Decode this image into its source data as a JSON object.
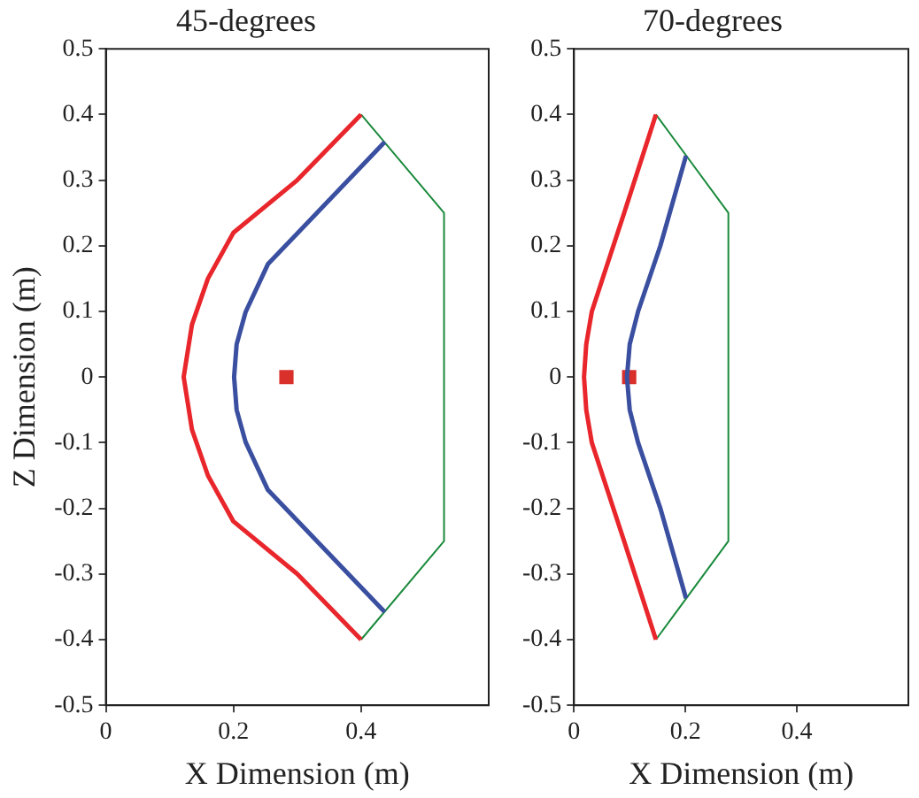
{
  "chart_data": [
    {
      "type": "line",
      "title": "45-degrees",
      "xlabel": "X Dimension (m)",
      "ylabel": "Z Dimension (m)",
      "xlim": [
        0,
        0.6
      ],
      "xticks": [
        0,
        0.2,
        0.4
      ],
      "ylim": [
        -0.5,
        0.5
      ],
      "yticks": [
        -0.5,
        -0.4,
        -0.3,
        -0.2,
        -0.1,
        0,
        0.1,
        0.2,
        0.3,
        0.4,
        0.5
      ],
      "grid": false,
      "legend": false,
      "series": [
        {
          "color": "#e8262b",
          "x": [
            0.4,
            0.3,
            0.2,
            0.16,
            0.135,
            0.122,
            0.135,
            0.16,
            0.2,
            0.3,
            0.4
          ],
          "values": [
            0.4,
            0.3,
            0.22,
            0.15,
            0.08,
            0,
            -0.08,
            -0.15,
            -0.22,
            -0.3,
            -0.4
          ]
        },
        {
          "color": "#3a4fa0",
          "x": [
            0.437,
            0.254,
            0.219,
            0.205,
            0.201,
            0.205,
            0.219,
            0.254,
            0.437
          ],
          "values": [
            0.358,
            0.172,
            0.099,
            0.05,
            0,
            -0.05,
            -0.099,
            -0.172,
            -0.358
          ]
        },
        {
          "color": "#1b8a3c",
          "x": [
            0.4,
            0.53,
            0.53,
            0.4
          ],
          "values": [
            0.4,
            0.25,
            -0.25,
            -0.4
          ]
        },
        {
          "type": "scatter",
          "marker": "square",
          "color": "#d9302c",
          "x": [
            0.283
          ],
          "values": [
            0
          ]
        }
      ]
    },
    {
      "type": "line",
      "title": "70-degrees",
      "xlabel": "X Dimension (m)",
      "xlim": [
        0,
        0.6
      ],
      "xticks": [
        0,
        0.2,
        0.4
      ],
      "ylim": [
        -0.5,
        0.5
      ],
      "yticks": [
        -0.5,
        -0.4,
        -0.3,
        -0.2,
        -0.1,
        0,
        0.1,
        0.2,
        0.3,
        0.4,
        0.5
      ],
      "grid": false,
      "legend": false,
      "series": [
        {
          "color": "#e8262b",
          "x": [
            0.147,
            0.09,
            0.032,
            0.022,
            0.018,
            0.022,
            0.032,
            0.09,
            0.147
          ],
          "values": [
            0.4,
            0.25,
            0.1,
            0.05,
            0,
            -0.05,
            -0.1,
            -0.25,
            -0.4
          ]
        },
        {
          "color": "#3a4fa0",
          "x": [
            0.201,
            0.155,
            0.115,
            0.1,
            0.095,
            0.1,
            0.115,
            0.155,
            0.201
          ],
          "values": [
            0.337,
            0.2,
            0.1,
            0.05,
            0,
            -0.05,
            -0.1,
            -0.2,
            -0.337
          ]
        },
        {
          "color": "#1b8a3c",
          "x": [
            0.147,
            0.277,
            0.277,
            0.147
          ],
          "values": [
            0.4,
            0.25,
            -0.25,
            -0.4
          ]
        },
        {
          "type": "scatter",
          "marker": "square",
          "color": "#d9302c",
          "x": [
            0.099
          ],
          "values": [
            0
          ]
        }
      ]
    }
  ]
}
